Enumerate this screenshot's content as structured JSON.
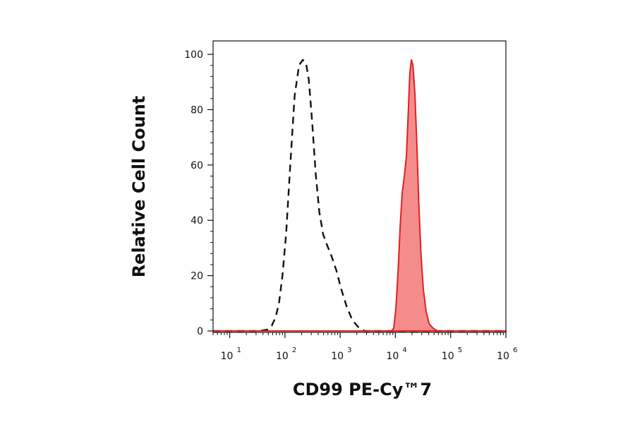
{
  "chart_data": {
    "type": "area",
    "title": "",
    "xlabel": "CD99 PE-Cy™7",
    "ylabel": "Relative Cell Count",
    "x_scale": "log",
    "xlim": [
      5,
      1000000
    ],
    "ylim": [
      0,
      100
    ],
    "x_ticks": [
      {
        "base": "10",
        "exp": "1",
        "value": 10
      },
      {
        "base": "10",
        "exp": "2",
        "value": 100
      },
      {
        "base": "10",
        "exp": "3",
        "value": 1000
      },
      {
        "base": "10",
        "exp": "4",
        "value": 10000
      },
      {
        "base": "10",
        "exp": "5",
        "value": 100000
      },
      {
        "base": "10",
        "exp": "6",
        "value": 1000000
      }
    ],
    "y_ticks": [
      0,
      20,
      40,
      60,
      80,
      100
    ],
    "grid": false,
    "legend": "none",
    "series": [
      {
        "style": "dashed",
        "color": "#111111",
        "points": [
          [
            5,
            0
          ],
          [
            35,
            0
          ],
          [
            48,
            0.5
          ],
          [
            58,
            2
          ],
          [
            68,
            5
          ],
          [
            78,
            10
          ],
          [
            90,
            20
          ],
          [
            105,
            35
          ],
          [
            125,
            60
          ],
          [
            150,
            85
          ],
          [
            180,
            96
          ],
          [
            210,
            98
          ],
          [
            240,
            97
          ],
          [
            270,
            91
          ],
          [
            310,
            76
          ],
          [
            360,
            57
          ],
          [
            420,
            43
          ],
          [
            490,
            35
          ],
          [
            580,
            31
          ],
          [
            700,
            27
          ],
          [
            850,
            22
          ],
          [
            1050,
            15
          ],
          [
            1300,
            9
          ],
          [
            1650,
            4
          ],
          [
            2100,
            1.5
          ],
          [
            2800,
            0
          ],
          [
            1000000,
            0
          ]
        ]
      },
      {
        "style": "filled",
        "color": "#e02020",
        "fill": "#f58c8c",
        "points": [
          [
            5,
            0
          ],
          [
            8500,
            0
          ],
          [
            9300,
            1
          ],
          [
            10200,
            8
          ],
          [
            11200,
            22
          ],
          [
            12200,
            38
          ],
          [
            13300,
            50
          ],
          [
            14500,
            56
          ],
          [
            15800,
            63
          ],
          [
            17000,
            78
          ],
          [
            18200,
            93
          ],
          [
            19500,
            98
          ],
          [
            20800,
            96
          ],
          [
            22500,
            86
          ],
          [
            24500,
            67
          ],
          [
            26500,
            46
          ],
          [
            29000,
            28
          ],
          [
            32000,
            15
          ],
          [
            36000,
            7
          ],
          [
            41000,
            2.5
          ],
          [
            48000,
            1
          ],
          [
            58000,
            0
          ],
          [
            1000000,
            0
          ]
        ]
      }
    ]
  }
}
